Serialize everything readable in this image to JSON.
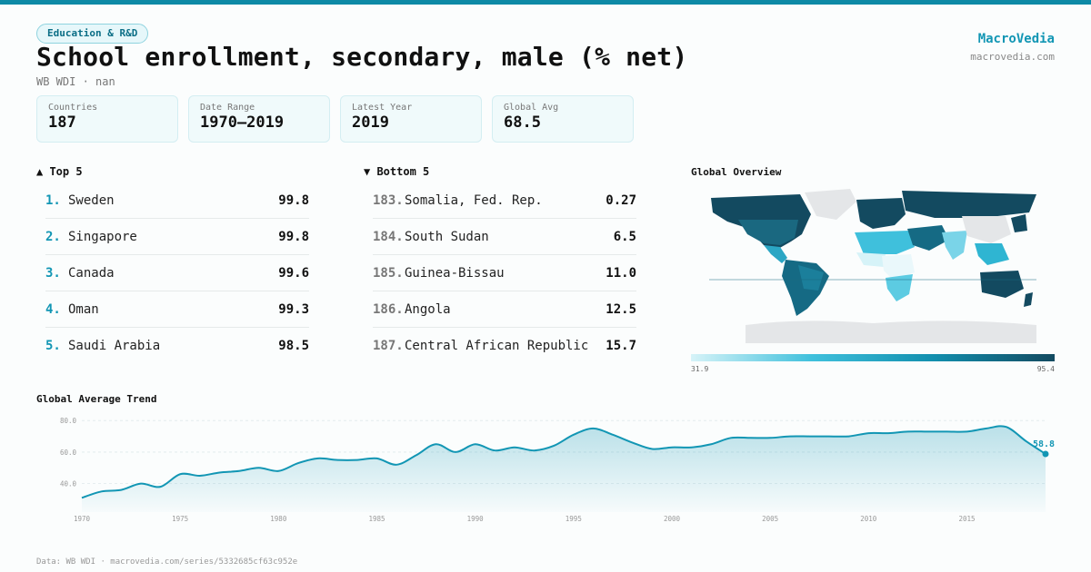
{
  "category_tag": "Education & R&D",
  "title": "School enrollment, secondary, male (% net)",
  "subtitle": "WB WDI · nan",
  "brand": {
    "name": "MacroVedia",
    "url": "macrovedia.com"
  },
  "stats": [
    {
      "label": "Countries",
      "value": "187"
    },
    {
      "label": "Date Range",
      "value": "1970–2019"
    },
    {
      "label": "Latest Year",
      "value": "2019"
    },
    {
      "label": "Global Avg",
      "value": "68.5"
    }
  ],
  "top5": {
    "heading": "▲ Top 5",
    "items": [
      {
        "rank": "1.",
        "name": "Sweden",
        "value": "99.8"
      },
      {
        "rank": "2.",
        "name": "Singapore",
        "value": "99.8"
      },
      {
        "rank": "3.",
        "name": "Canada",
        "value": "99.6"
      },
      {
        "rank": "4.",
        "name": "Oman",
        "value": "99.3"
      },
      {
        "rank": "5.",
        "name": "Saudi Arabia",
        "value": "98.5"
      }
    ]
  },
  "bottom5": {
    "heading": "▼ Bottom 5",
    "items": [
      {
        "rank": "183.",
        "name": "Somalia, Fed. Rep.",
        "value": "0.27"
      },
      {
        "rank": "184.",
        "name": "South Sudan",
        "value": "6.5"
      },
      {
        "rank": "185.",
        "name": "Guinea-Bissau",
        "value": "11.0"
      },
      {
        "rank": "186.",
        "name": "Angola",
        "value": "12.5"
      },
      {
        "rank": "187.",
        "name": "Central African Republic",
        "value": "15.7"
      }
    ]
  },
  "map": {
    "title": "Global Overview",
    "scale_min": "31.9",
    "scale_max": "95.4",
    "colors": {
      "low": "#d6f3f8",
      "mid": "#3fc0dc",
      "high": "#134a60",
      "no_data": "#e4e6e8"
    }
  },
  "trend": {
    "title": "Global Average Trend"
  },
  "footer": "Data: WB WDI · macrovedia.com/series/5332685cf63c952e",
  "chart_data": {
    "type": "area",
    "title": "Global Average Trend",
    "xlabel": "",
    "ylabel": "",
    "x_ticks": [
      "1970",
      "1975",
      "1980",
      "1985",
      "1990",
      "1995",
      "2000",
      "2005",
      "2010",
      "2015"
    ],
    "y_ticks": [
      "40.0",
      "60.0",
      "80.0"
    ],
    "xlim": [
      1970,
      2019
    ],
    "ylim": [
      30,
      83
    ],
    "grid": true,
    "last_value_label": "58.8",
    "color": "#1296b4",
    "x": [
      1970,
      1971,
      1972,
      1973,
      1974,
      1975,
      1976,
      1977,
      1978,
      1979,
      1980,
      1981,
      1982,
      1983,
      1984,
      1985,
      1986,
      1987,
      1988,
      1989,
      1990,
      1991,
      1992,
      1993,
      1994,
      1995,
      1996,
      1997,
      1998,
      1999,
      2000,
      2001,
      2002,
      2003,
      2004,
      2005,
      2006,
      2007,
      2008,
      2009,
      2010,
      2011,
      2012,
      2013,
      2014,
      2015,
      2016,
      2017,
      2018,
      2019
    ],
    "values": [
      31,
      35,
      36,
      40,
      38,
      46,
      45,
      47,
      48,
      50,
      48,
      53,
      56,
      55,
      55,
      56,
      52,
      58,
      65,
      60,
      65,
      61,
      63,
      61,
      64,
      71,
      75,
      71,
      66,
      62,
      63,
      63,
      65,
      69,
      69,
      69,
      70,
      70,
      70,
      70,
      72,
      72,
      73,
      73,
      73,
      73,
      75,
      76,
      67,
      58.8
    ]
  }
}
